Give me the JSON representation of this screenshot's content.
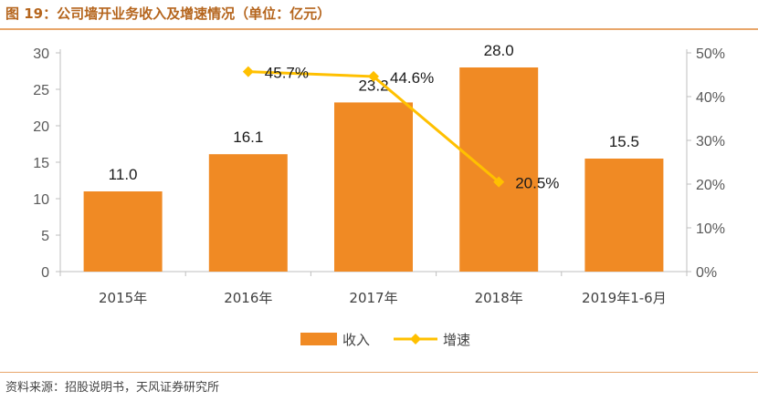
{
  "header": {
    "title": "图 19：公司墙开业务收入及增速情况（单位：亿元）"
  },
  "footer": {
    "source": "资料来源：招股说明书，天风证券研究所"
  },
  "colors": {
    "bar": "#F08A24",
    "line": "#FFC000",
    "accent_rule": "#E8A66A"
  },
  "chart_data": {
    "type": "bar",
    "categories": [
      "2015年",
      "2016年",
      "2017年",
      "2018年",
      "2019年1-6月"
    ],
    "series": [
      {
        "name": "收入",
        "type": "bar",
        "axis": "left",
        "values": [
          11.0,
          16.1,
          23.2,
          28.0,
          15.5
        ],
        "labels": [
          "11.0",
          "16.1",
          "23.2",
          "28.0",
          "15.5"
        ]
      },
      {
        "name": "增速",
        "type": "line",
        "axis": "right",
        "values": [
          null,
          45.7,
          44.6,
          20.5,
          null
        ],
        "labels": [
          "",
          "45.7%",
          "44.6%",
          "20.5%",
          ""
        ]
      }
    ],
    "y_left": {
      "range": [
        0,
        30
      ],
      "ticks": [
        "0",
        "5",
        "10",
        "15",
        "20",
        "25",
        "30"
      ]
    },
    "y_right": {
      "range": [
        0,
        50
      ],
      "ticks": [
        "0%",
        "10%",
        "20%",
        "30%",
        "40%",
        "50%"
      ]
    },
    "grid": false,
    "legend": "bottom-center"
  }
}
